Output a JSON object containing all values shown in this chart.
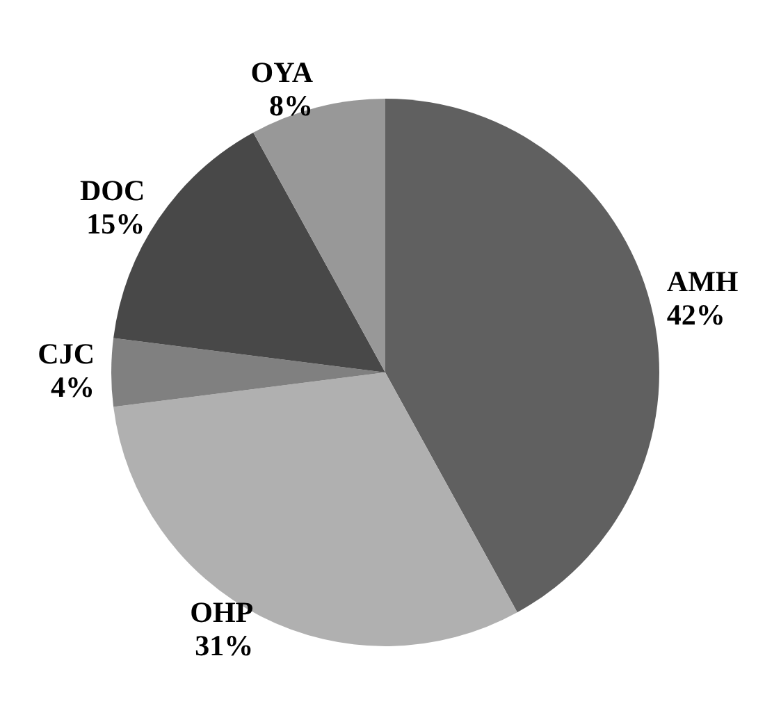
{
  "chart_data": {
    "type": "pie",
    "categories": [
      "AMH",
      "OHP",
      "CJC",
      "DOC",
      "OYA"
    ],
    "values": [
      42,
      31,
      4,
      15,
      8
    ],
    "colors": [
      "#606060",
      "#b0b0b0",
      "#808080",
      "#484848",
      "#989898"
    ],
    "value_labels": [
      "42%",
      "31%",
      "4%",
      "15%",
      "8%"
    ],
    "legend": false
  }
}
